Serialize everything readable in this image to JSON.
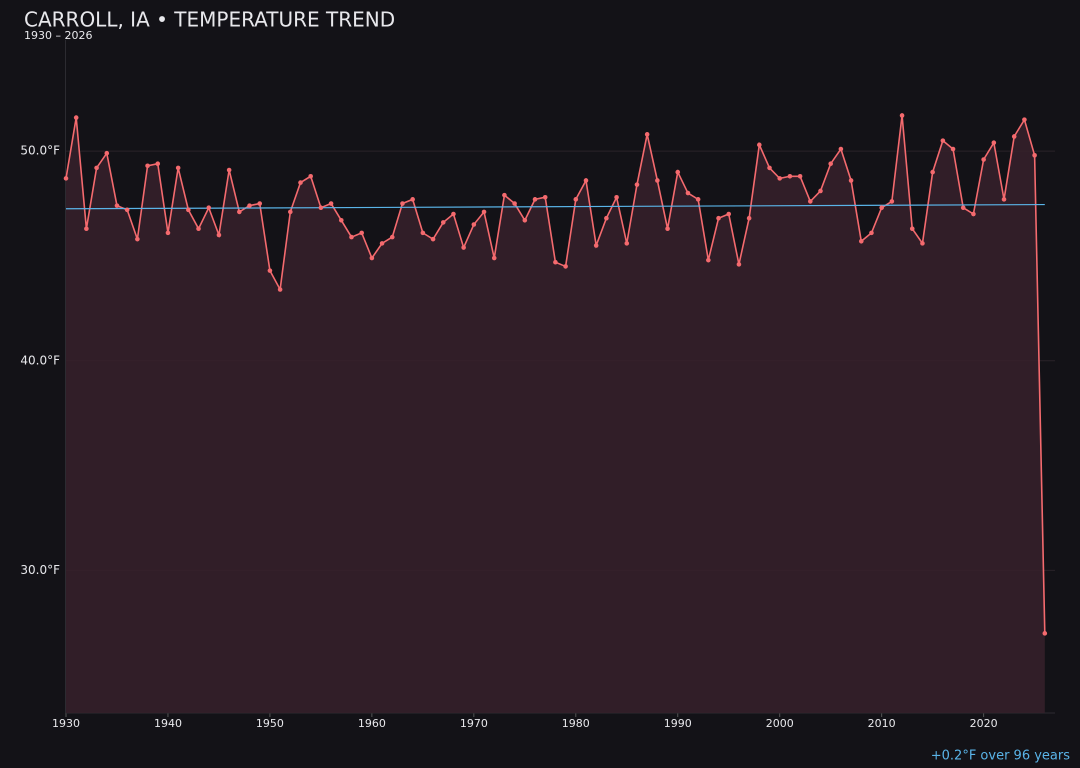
{
  "chart_data": {
    "type": "line",
    "title": "CARROLL, IA • TEMPERATURE TREND",
    "subtitle": "1930 – 2026",
    "annotation": "+0.2°F over 96 years",
    "x": [
      1930,
      1931,
      1932,
      1933,
      1934,
      1935,
      1936,
      1937,
      1938,
      1939,
      1940,
      1941,
      1942,
      1943,
      1944,
      1945,
      1946,
      1947,
      1948,
      1949,
      1950,
      1951,
      1952,
      1953,
      1954,
      1955,
      1956,
      1957,
      1958,
      1959,
      1960,
      1961,
      1962,
      1963,
      1964,
      1965,
      1966,
      1967,
      1968,
      1969,
      1970,
      1971,
      1972,
      1973,
      1974,
      1975,
      1976,
      1977,
      1978,
      1979,
      1980,
      1981,
      1982,
      1983,
      1984,
      1985,
      1986,
      1987,
      1988,
      1989,
      1990,
      1991,
      1992,
      1993,
      1994,
      1995,
      1996,
      1997,
      1998,
      1999,
      2000,
      2001,
      2002,
      2003,
      2004,
      2005,
      2006,
      2007,
      2008,
      2009,
      2010,
      2011,
      2012,
      2013,
      2014,
      2015,
      2016,
      2017,
      2018,
      2019,
      2020,
      2021,
      2022,
      2023,
      2024,
      2025,
      2026
    ],
    "series": [
      {
        "color": "#f46a6e",
        "fill": "#35202a",
        "values": [
          48.7,
          51.6,
          46.3,
          49.2,
          49.9,
          47.4,
          47.2,
          45.8,
          49.3,
          49.4,
          46.1,
          49.2,
          47.2,
          46.3,
          47.3,
          46.0,
          49.1,
          47.1,
          47.4,
          47.5,
          44.3,
          43.4,
          47.1,
          48.5,
          48.8,
          47.3,
          47.5,
          46.7,
          45.9,
          46.1,
          44.9,
          45.6,
          45.9,
          47.5,
          47.7,
          46.1,
          45.8,
          46.6,
          47.0,
          45.4,
          46.5,
          47.1,
          44.9,
          47.9,
          47.5,
          46.7,
          47.7,
          47.8,
          44.7,
          44.5,
          47.7,
          48.6,
          45.5,
          46.8,
          47.8,
          45.6,
          48.4,
          50.8,
          48.6,
          46.3,
          49.0,
          48.0,
          47.7,
          44.8,
          46.8,
          47.0,
          44.6,
          46.8,
          50.3,
          49.2,
          48.7,
          48.8,
          48.8,
          47.6,
          48.1,
          49.4,
          50.1,
          48.6,
          45.7,
          46.1,
          47.3,
          47.6,
          51.7,
          46.3,
          45.6,
          49.0,
          50.5,
          50.1,
          47.3,
          47.0,
          49.6,
          50.4,
          47.7,
          50.7,
          51.5,
          49.8,
          27.0
        ]
      }
    ],
    "trend": {
      "color": "#5ab4e8",
      "x": [
        1930,
        2026
      ],
      "values": [
        47.25,
        47.45
      ]
    },
    "xlim": [
      1930,
      2027
    ],
    "ylim": [
      23.2,
      55.3
    ],
    "xticks": [
      1930,
      1940,
      1950,
      1960,
      1970,
      1980,
      1990,
      2000,
      2010,
      2020
    ],
    "yticks": [
      {
        "value": 30,
        "label": "30.0°F"
      },
      {
        "value": 40,
        "label": "40.0°F"
      },
      {
        "value": 50,
        "label": "50.0°F"
      }
    ],
    "grid": true
  }
}
